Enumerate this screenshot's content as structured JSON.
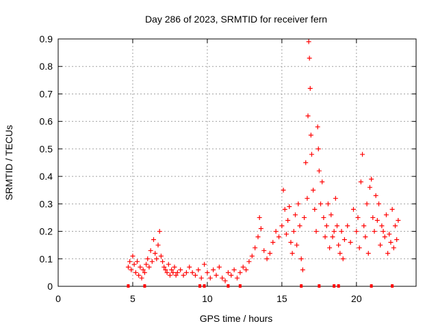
{
  "chart_data": {
    "type": "scatter",
    "title": "Day 286 of 2023, SRMTID for receiver fern",
    "xlabel": "GPS time / hours",
    "ylabel": "SRMTID / TECUs",
    "xlim": [
      0,
      24
    ],
    "ylim": [
      0,
      0.9
    ],
    "xticks": [
      0,
      5,
      10,
      15,
      20
    ],
    "yticks": [
      0,
      0.1,
      0.2,
      0.3,
      0.4,
      0.5,
      0.6,
      0.7,
      0.8,
      0.9
    ],
    "xtick_labels": [
      "0",
      "5",
      "10",
      "15",
      "20"
    ],
    "ytick_labels": [
      "0",
      "0.1",
      "0.2",
      "0.3",
      "0.4",
      "0.5",
      "0.6",
      "0.7",
      "0.8",
      "0.9"
    ],
    "grid": true,
    "marker": "+",
    "color": "#ff0000",
    "series": [
      {
        "name": "SRMTID",
        "points": [
          [
            4.7,
            0.07
          ],
          [
            4.8,
            0.09
          ],
          [
            4.9,
            0.06
          ],
          [
            5.0,
            0.11
          ],
          [
            5.1,
            0.08
          ],
          [
            5.2,
            0.05
          ],
          [
            5.3,
            0.09
          ],
          [
            5.4,
            0.04
          ],
          [
            5.5,
            0.07
          ],
          [
            5.6,
            0.03
          ],
          [
            5.7,
            0.06
          ],
          [
            5.8,
            0.05
          ],
          [
            5.9,
            0.08
          ],
          [
            6.0,
            0.1
          ],
          [
            6.1,
            0.07
          ],
          [
            6.2,
            0.13
          ],
          [
            6.3,
            0.09
          ],
          [
            6.4,
            0.17
          ],
          [
            6.5,
            0.12
          ],
          [
            6.6,
            0.1
          ],
          [
            6.7,
            0.15
          ],
          [
            6.8,
            0.2
          ],
          [
            6.9,
            0.11
          ],
          [
            7.0,
            0.09
          ],
          [
            7.1,
            0.07
          ],
          [
            7.2,
            0.06
          ],
          [
            7.3,
            0.05
          ],
          [
            7.4,
            0.08
          ],
          [
            7.5,
            0.04
          ],
          [
            7.6,
            0.06
          ],
          [
            7.7,
            0.05
          ],
          [
            7.8,
            0.07
          ],
          [
            7.9,
            0.04
          ],
          [
            8.0,
            0.05
          ],
          [
            8.2,
            0.06
          ],
          [
            8.4,
            0.04
          ],
          [
            8.6,
            0.05
          ],
          [
            8.8,
            0.07
          ],
          [
            9.0,
            0.05
          ],
          [
            9.2,
            0.04
          ],
          [
            9.4,
            0.06
          ],
          [
            9.6,
            0.03
          ],
          [
            9.8,
            0.08
          ],
          [
            10.0,
            0.05
          ],
          [
            10.2,
            0.03
          ],
          [
            10.4,
            0.06
          ],
          [
            10.6,
            0.04
          ],
          [
            10.8,
            0.07
          ],
          [
            11.0,
            0.03
          ],
          [
            11.2,
            0.02
          ],
          [
            11.4,
            0.05
          ],
          [
            11.6,
            0.04
          ],
          [
            11.8,
            0.06
          ],
          [
            12.0,
            0.03
          ],
          [
            12.2,
            0.05
          ],
          [
            12.4,
            0.07
          ],
          [
            12.6,
            0.06
          ],
          [
            12.8,
            0.09
          ],
          [
            13.0,
            0.11
          ],
          [
            13.2,
            0.14
          ],
          [
            13.4,
            0.18
          ],
          [
            13.5,
            0.25
          ],
          [
            13.6,
            0.21
          ],
          [
            13.8,
            0.13
          ],
          [
            14.0,
            0.1
          ],
          [
            14.2,
            0.12
          ],
          [
            14.4,
            0.16
          ],
          [
            14.6,
            0.2
          ],
          [
            14.8,
            0.18
          ],
          [
            15.0,
            0.22
          ],
          [
            15.1,
            0.35
          ],
          [
            15.2,
            0.28
          ],
          [
            15.3,
            0.19
          ],
          [
            15.4,
            0.24
          ],
          [
            15.5,
            0.29
          ],
          [
            15.6,
            0.16
          ],
          [
            15.7,
            0.12
          ],
          [
            15.8,
            0.2
          ],
          [
            15.9,
            0.26
          ],
          [
            16.0,
            0.15
          ],
          [
            16.1,
            0.3
          ],
          [
            16.2,
            0.22
          ],
          [
            16.3,
            0.1
          ],
          [
            16.4,
            0.06
          ],
          [
            16.5,
            0.25
          ],
          [
            16.6,
            0.45
          ],
          [
            16.7,
            0.32
          ],
          [
            16.75,
            0.62
          ],
          [
            16.8,
            0.89
          ],
          [
            16.85,
            0.83
          ],
          [
            16.9,
            0.72
          ],
          [
            16.95,
            0.55
          ],
          [
            17.0,
            0.48
          ],
          [
            17.1,
            0.35
          ],
          [
            17.2,
            0.28
          ],
          [
            17.3,
            0.2
          ],
          [
            17.4,
            0.58
          ],
          [
            17.45,
            0.5
          ],
          [
            17.5,
            0.42
          ],
          [
            17.6,
            0.3
          ],
          [
            17.7,
            0.38
          ],
          [
            17.8,
            0.25
          ],
          [
            17.9,
            0.18
          ],
          [
            18.0,
            0.22
          ],
          [
            18.1,
            0.3
          ],
          [
            18.2,
            0.14
          ],
          [
            18.3,
            0.26
          ],
          [
            18.4,
            0.18
          ],
          [
            18.5,
            0.2
          ],
          [
            18.6,
            0.32
          ],
          [
            18.7,
            0.22
          ],
          [
            18.8,
            0.15
          ],
          [
            18.9,
            0.12
          ],
          [
            19.0,
            0.2
          ],
          [
            19.1,
            0.1
          ],
          [
            19.2,
            0.17
          ],
          [
            19.4,
            0.22
          ],
          [
            19.6,
            0.16
          ],
          [
            19.8,
            0.28
          ],
          [
            20.0,
            0.2
          ],
          [
            20.1,
            0.25
          ],
          [
            20.2,
            0.14
          ],
          [
            20.3,
            0.38
          ],
          [
            20.4,
            0.48
          ],
          [
            20.5,
            0.22
          ],
          [
            20.6,
            0.18
          ],
          [
            20.7,
            0.3
          ],
          [
            20.8,
            0.12
          ],
          [
            20.9,
            0.36
          ],
          [
            21.0,
            0.39
          ],
          [
            21.1,
            0.25
          ],
          [
            21.2,
            0.2
          ],
          [
            21.3,
            0.33
          ],
          [
            21.4,
            0.24
          ],
          [
            21.5,
            0.3
          ],
          [
            21.6,
            0.15
          ],
          [
            21.7,
            0.22
          ],
          [
            21.8,
            0.2
          ],
          [
            21.9,
            0.18
          ],
          [
            22.0,
            0.26
          ],
          [
            22.1,
            0.12
          ],
          [
            22.2,
            0.19
          ],
          [
            22.3,
            0.16
          ],
          [
            22.4,
            0.28
          ],
          [
            22.5,
            0.14
          ],
          [
            22.6,
            0.22
          ],
          [
            22.7,
            0.17
          ],
          [
            22.8,
            0.24
          ]
        ]
      }
    ],
    "gap_markers_x": [
      4.7,
      5.8,
      9.5,
      9.8,
      11.4,
      12.2,
      16.3,
      17.5,
      18.5,
      18.8,
      21.0,
      22.4
    ]
  }
}
